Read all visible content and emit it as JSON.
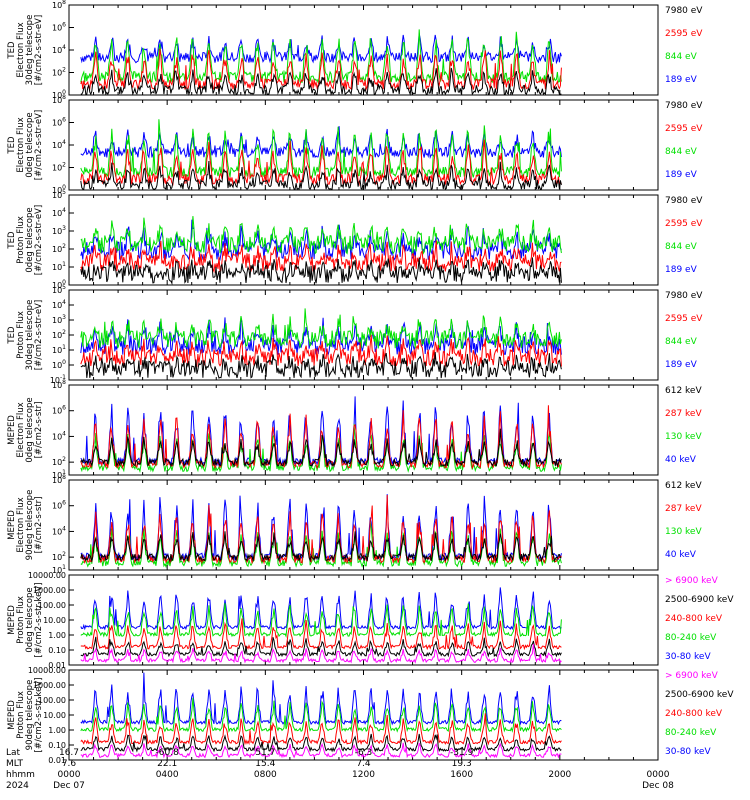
{
  "colors": {
    "black": "#000000",
    "red": "#ff0000",
    "green": "#00e000",
    "blue": "#0000ff",
    "magenta": "#ff00ff"
  },
  "chart_data": [
    {
      "type": "line",
      "panel": "TED 30deg electron",
      "ylabel": [
        "TED",
        "Electron Flux",
        "30deg telescope",
        "[#/cm2-s-str-eV]"
      ],
      "scale": "log",
      "yticks": [
        "10^0",
        "10^2",
        "10^4",
        "10^6",
        "10^8"
      ],
      "ylim_exp": [
        0,
        8
      ],
      "series": [
        {
          "name": "7980 eV",
          "color": "black"
        },
        {
          "name": "2595 eV",
          "color": "red"
        },
        {
          "name": "844 eV",
          "color": "green"
        },
        {
          "name": "189 eV",
          "color": "blue"
        }
      ]
    },
    {
      "type": "line",
      "panel": "TED 0deg electron",
      "ylabel": [
        "TED",
        "Electron Flux",
        "0deg telescope",
        "[#/cm2-s-str-eV]"
      ],
      "scale": "log",
      "yticks": [
        "10^0",
        "10^2",
        "10^4",
        "10^6",
        "10^8"
      ],
      "ylim_exp": [
        0,
        8
      ],
      "series": [
        {
          "name": "7980 eV",
          "color": "black"
        },
        {
          "name": "2595 eV",
          "color": "red"
        },
        {
          "name": "844 eV",
          "color": "green"
        },
        {
          "name": "189 eV",
          "color": "blue"
        }
      ]
    },
    {
      "type": "line",
      "panel": "TED 0deg proton",
      "ylabel": [
        "TED",
        "Proton Flux",
        "0deg telescope",
        "[#/cm2-s-str-eV]"
      ],
      "scale": "log",
      "yticks": [
        "10^0",
        "10^1",
        "10^2",
        "10^3",
        "10^4",
        "10^5"
      ],
      "ylim_exp": [
        0,
        5
      ],
      "series": [
        {
          "name": "7980 eV",
          "color": "black"
        },
        {
          "name": "2595 eV",
          "color": "red"
        },
        {
          "name": "844 eV",
          "color": "green"
        },
        {
          "name": "189 eV",
          "color": "blue"
        }
      ]
    },
    {
      "type": "line",
      "panel": "TED 30deg proton",
      "ylabel": [
        "TED",
        "Proton Flux",
        "30deg telescope",
        "[#/cm2-s-str-eV]"
      ],
      "scale": "log",
      "yticks": [
        "10^-1",
        "10^0",
        "10^1",
        "10^2",
        "10^3",
        "10^4",
        "10^5"
      ],
      "ylim_exp": [
        -1,
        5
      ],
      "series": [
        {
          "name": "7980 eV",
          "color": "black"
        },
        {
          "name": "2595 eV",
          "color": "red"
        },
        {
          "name": "844 eV",
          "color": "green"
        },
        {
          "name": "189 eV",
          "color": "blue"
        }
      ]
    },
    {
      "type": "line",
      "panel": "MEPED 0deg electron",
      "ylabel": [
        "MEPED",
        "Electron Flux",
        "0deg telescope",
        "[#/cm2-s-str]"
      ],
      "scale": "log",
      "yticks": [
        "10^1",
        "10^2",
        "10^4",
        "10^6",
        "10^8"
      ],
      "ylim_exp": [
        1,
        8
      ],
      "series": [
        {
          "name": "612 keV",
          "color": "black"
        },
        {
          "name": "287 keV",
          "color": "red"
        },
        {
          "name": "130 keV",
          "color": "green"
        },
        {
          "name": "40 keV",
          "color": "blue"
        }
      ]
    },
    {
      "type": "line",
      "panel": "MEPED 90deg electron",
      "ylabel": [
        "MEPED",
        "Electron Flux",
        "90deg telescope",
        "[#/cm2-s-str]"
      ],
      "scale": "log",
      "yticks": [
        "10^1",
        "10^2",
        "10^4",
        "10^6",
        "10^8"
      ],
      "ylim_exp": [
        1,
        8
      ],
      "series": [
        {
          "name": "612 keV",
          "color": "black"
        },
        {
          "name": "287 keV",
          "color": "red"
        },
        {
          "name": "130 keV",
          "color": "green"
        },
        {
          "name": "40 keV",
          "color": "blue"
        }
      ]
    },
    {
      "type": "line",
      "panel": "MEPED 0deg proton",
      "ylabel": [
        "MEPED",
        "Proton Flux",
        "0deg telescope",
        "[#/cm2-s-str-keV]"
      ],
      "scale": "log",
      "yticks": [
        "0.01",
        "0.10",
        "1.00",
        "10.00",
        "100.00",
        "1000.00",
        "10000.00"
      ],
      "ylim_exp": [
        -2,
        4
      ],
      "series": [
        {
          "name": "> 6900 keV",
          "color": "magenta"
        },
        {
          "name": "2500-6900 keV",
          "color": "black"
        },
        {
          "name": "240-800 keV",
          "color": "red"
        },
        {
          "name": "80-240 keV",
          "color": "green"
        },
        {
          "name": "30-80 keV",
          "color": "blue"
        }
      ]
    },
    {
      "type": "line",
      "panel": "MEPED 90deg proton",
      "ylabel": [
        "MEPED",
        "Proton Flux",
        "90deg telescope",
        "[#/cm2-s-str-keV]"
      ],
      "scale": "log",
      "yticks": [
        "0.01",
        "0.10",
        "1.00",
        "10.00",
        "100.00",
        "1000.00",
        "10000.00"
      ],
      "ylim_exp": [
        -2,
        4
      ],
      "series": [
        {
          "name": "> 6900 keV",
          "color": "magenta"
        },
        {
          "name": "2500-6900 keV",
          "color": "black"
        },
        {
          "name": "240-800 keV",
          "color": "red"
        },
        {
          "name": "80-240 keV",
          "color": "green"
        },
        {
          "name": "30-80 keV",
          "color": "blue"
        }
      ]
    }
  ],
  "x_axis": {
    "row_labels": [
      "Lat",
      "MLT",
      "hhmm",
      "2024"
    ],
    "ticks": [
      {
        "lat": "16.7",
        "mlt": "7.6",
        "hhmm": "0000",
        "date": "Dec 07"
      },
      {
        "lat": "-60.8",
        "mlt": "22.1",
        "hhmm": "0400",
        "date": ""
      },
      {
        "lat": "51.7",
        "mlt": "15.4",
        "hhmm": "0800",
        "date": ""
      },
      {
        "lat": "-6.3",
        "mlt": "7.4",
        "hhmm": "1200",
        "date": ""
      },
      {
        "lat": "-31.9",
        "mlt": "19.3",
        "hhmm": "1600",
        "date": ""
      },
      {
        "lat": "",
        "mlt": "",
        "hhmm": "2000",
        "date": ""
      },
      {
        "lat": "",
        "mlt": "",
        "hhmm": "0000",
        "date": "Dec 08"
      }
    ]
  }
}
